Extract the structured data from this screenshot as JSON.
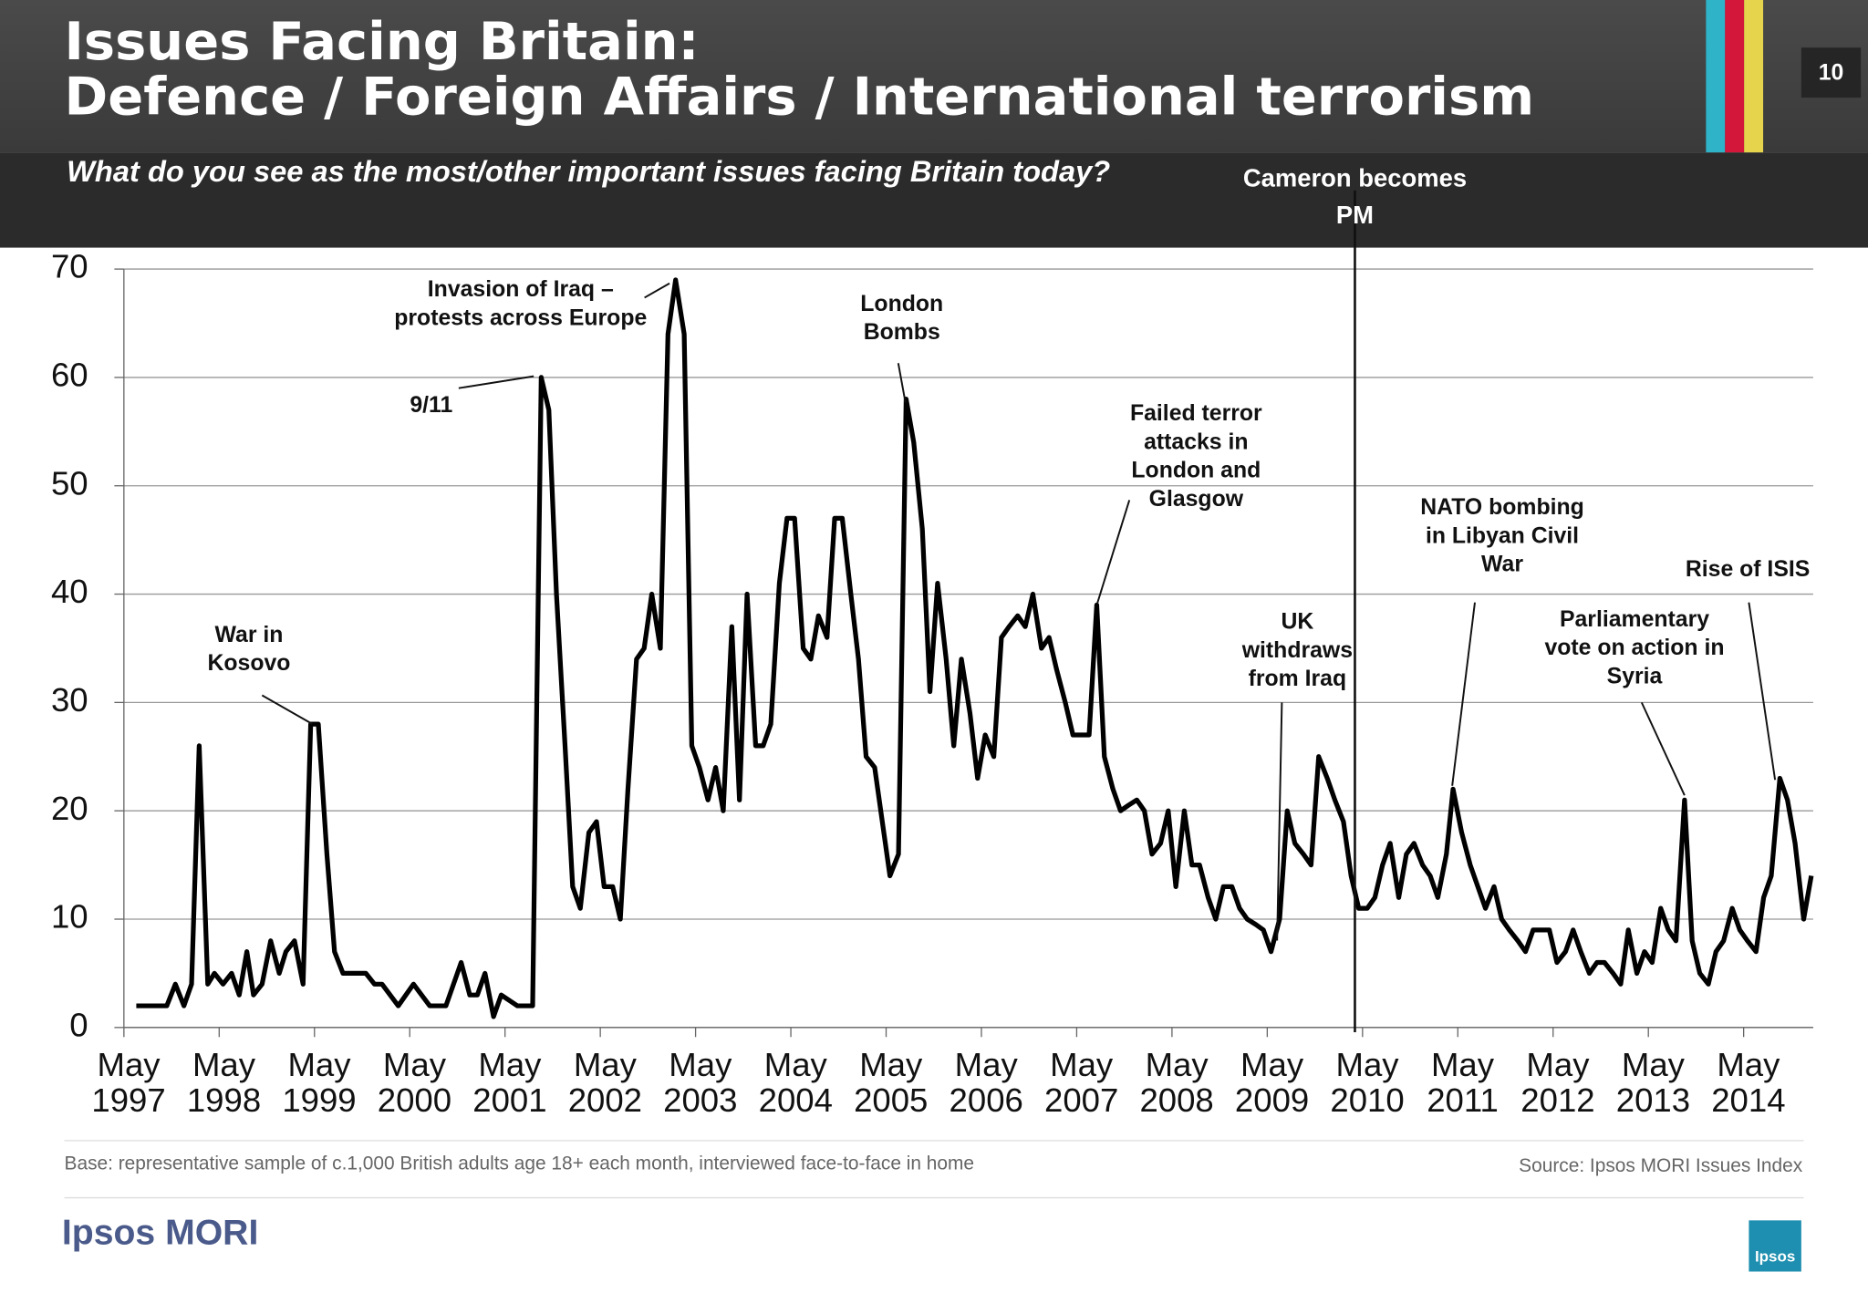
{
  "header": {
    "title_lines": [
      "Issues Facing Britain:",
      "Defence / Foreign Affairs / International terrorism"
    ],
    "subtitle": "What do you see as the most/other important issues facing Britain today?",
    "page_number": "10"
  },
  "chart_data": {
    "type": "line",
    "x": [
      1997.46,
      1997.56,
      1997.66,
      1997.78,
      1997.87,
      1997.96,
      1998.04,
      1998.12,
      1998.21,
      1998.28,
      1998.37,
      1998.46,
      1998.54,
      1998.62,
      1998.69,
      1998.78,
      1998.87,
      1998.96,
      1999.03,
      1999.12,
      1999.21,
      1999.29,
      1999.37,
      1999.46,
      1999.54,
      1999.63,
      1999.71,
      1999.79,
      1999.87,
      1999.96,
      2000.04,
      2000.21,
      2000.37,
      2000.54,
      2000.71,
      2000.87,
      2000.96,
      2001.04,
      2001.12,
      2001.21,
      2001.29,
      2001.46,
      2001.62,
      2001.71,
      2001.79,
      2001.87,
      2001.96,
      2002.04,
      2002.12,
      2002.21,
      2002.29,
      2002.37,
      2002.46,
      2002.54,
      2002.62,
      2002.71,
      2002.79,
      2002.87,
      2002.96,
      2003.04,
      2003.12,
      2003.21,
      2003.29,
      2003.37,
      2003.46,
      2003.54,
      2003.62,
      2003.71,
      2003.79,
      2003.87,
      2003.96,
      2004.04,
      2004.12,
      2004.21,
      2004.29,
      2004.37,
      2004.46,
      2004.54,
      2004.62,
      2004.71,
      2004.79,
      2004.87,
      2004.96,
      2005.04,
      2005.12,
      2005.21,
      2005.29,
      2005.37,
      2005.46,
      2005.54,
      2005.62,
      2005.71,
      2005.79,
      2005.87,
      2005.96,
      2006.04,
      2006.12,
      2006.21,
      2006.29,
      2006.37,
      2006.46,
      2006.54,
      2006.62,
      2006.71,
      2006.79,
      2006.87,
      2006.96,
      2007.04,
      2007.12,
      2007.21,
      2007.29,
      2007.37,
      2007.46,
      2007.54,
      2007.62,
      2007.71,
      2007.79,
      2007.87,
      2007.96,
      2008.04,
      2008.12,
      2008.21,
      2008.29,
      2008.37,
      2008.46,
      2008.54,
      2008.62,
      2008.71,
      2008.79,
      2008.87,
      2008.96,
      2009.04,
      2009.12,
      2009.21,
      2009.29,
      2009.37,
      2009.46,
      2009.54,
      2009.62,
      2009.71,
      2009.79,
      2009.87,
      2009.96,
      2010.04,
      2010.13,
      2010.21,
      2010.29,
      2010.38,
      2010.46,
      2010.54,
      2010.62,
      2010.71,
      2010.79,
      2010.87,
      2010.96,
      2011.04,
      2011.12,
      2011.21,
      2011.28,
      2011.37,
      2011.46,
      2011.54,
      2011.62,
      2011.71,
      2011.79,
      2011.87,
      2011.96,
      2012.04,
      2012.12,
      2012.21,
      2012.29,
      2012.37,
      2012.46,
      2012.54,
      2012.62,
      2012.71,
      2012.79,
      2012.87,
      2012.96,
      2013.04,
      2013.12,
      2013.21,
      2013.29,
      2013.37,
      2013.46,
      2013.54,
      2013.62,
      2013.71,
      2013.79,
      2013.87,
      2013.96,
      2014.04,
      2014.12,
      2014.21,
      2014.29,
      2014.37,
      2014.46,
      2014.54,
      2014.62,
      2014.71,
      2014.79,
      2014.87,
      2014.96,
      2015.04
    ],
    "series": [
      {
        "color": "#000000",
        "values": [
          2,
          2,
          2,
          2,
          4,
          2,
          4,
          26,
          4,
          5,
          4,
          5,
          3,
          7,
          3,
          4,
          8,
          5,
          7,
          8,
          4,
          28,
          28,
          16,
          7,
          5,
          5,
          5,
          5,
          4,
          4,
          2,
          4,
          2,
          2,
          6,
          3,
          3,
          5,
          1,
          3,
          2,
          2,
          60,
          57,
          40,
          26,
          13,
          11,
          18,
          19,
          13,
          13,
          10,
          22,
          34,
          35,
          40,
          35,
          64,
          69,
          64,
          26,
          24,
          21,
          24,
          20,
          37,
          21,
          40,
          26,
          26,
          28,
          41,
          47,
          47,
          35,
          34,
          38,
          36,
          47,
          47,
          40,
          34,
          25,
          24,
          19,
          14,
          16,
          58,
          54,
          46,
          31,
          41,
          34,
          26,
          34,
          29,
          23,
          27,
          25,
          36,
          37,
          38,
          37,
          40,
          35,
          36,
          33,
          30,
          27,
          27,
          27,
          39,
          25,
          22,
          20,
          20.5,
          21,
          20,
          16,
          17,
          20,
          13,
          20,
          15,
          15,
          12,
          10,
          13,
          13,
          11,
          10,
          9.5,
          9,
          7,
          10,
          20,
          17,
          16,
          15,
          25,
          23,
          21,
          19,
          14,
          11,
          11,
          12,
          15,
          17,
          12,
          16,
          17,
          15,
          14,
          12,
          16,
          22,
          18,
          15,
          13,
          11,
          13,
          10,
          9,
          8,
          7,
          9,
          9,
          9,
          6,
          7,
          9,
          7,
          5,
          6,
          6,
          5,
          4,
          9,
          5,
          7,
          6,
          11,
          9,
          8,
          21,
          8,
          5,
          4,
          7,
          8,
          11,
          9,
          8,
          7,
          12,
          14,
          23,
          21,
          17,
          10,
          14
        ]
      }
    ],
    "xlim": [
      1997.33,
      2015.06
    ],
    "xticks": [
      {
        "value": 1997.33,
        "label": "May 1997"
      },
      {
        "value": 1998.33,
        "label": "May 1998"
      },
      {
        "value": 1999.33,
        "label": "May 1999"
      },
      {
        "value": 2000.33,
        "label": "May 2000"
      },
      {
        "value": 2001.33,
        "label": "May 2001"
      },
      {
        "value": 2002.33,
        "label": "May 2002"
      },
      {
        "value": 2003.33,
        "label": "May 2003"
      },
      {
        "value": 2004.33,
        "label": "May 2004"
      },
      {
        "value": 2005.33,
        "label": "May 2005"
      },
      {
        "value": 2006.33,
        "label": "May 2006"
      },
      {
        "value": 2007.33,
        "label": "May 2007"
      },
      {
        "value": 2008.33,
        "label": "May 2008"
      },
      {
        "value": 2009.33,
        "label": "May 2009"
      },
      {
        "value": 2010.33,
        "label": "May 2010"
      },
      {
        "value": 2011.33,
        "label": "May 2011"
      },
      {
        "value": 2012.33,
        "label": "May 2012"
      },
      {
        "value": 2013.33,
        "label": "May 2013"
      },
      {
        "value": 2014.33,
        "label": "May 2014"
      }
    ],
    "ylim": [
      0,
      70
    ],
    "yticks": [
      0,
      10,
      20,
      30,
      40,
      50,
      60,
      70
    ],
    "grid": true,
    "vline": {
      "x": 2010.25,
      "lines": [
        "Cameron becomes",
        "PM"
      ]
    },
    "annotations": [
      {
        "lines": [
          "War in",
          "Kosovo"
        ]
      },
      {
        "lines": [
          "9/11"
        ]
      },
      {
        "lines": [
          "Invasion of Iraq –",
          "protests across Europe"
        ]
      },
      {
        "lines": [
          "London",
          "Bombs"
        ]
      },
      {
        "lines": [
          "Failed terror",
          "attacks in",
          "London and",
          "Glasgow"
        ]
      },
      {
        "lines": [
          "UK",
          "withdraws",
          "from Iraq"
        ]
      },
      {
        "lines": [
          "NATO bombing",
          "in Libyan Civil",
          "War"
        ]
      },
      {
        "lines": [
          "Parliamentary",
          "vote on action in",
          "Syria"
        ]
      },
      {
        "lines": [
          "Rise of ISIS"
        ]
      }
    ]
  },
  "footer": {
    "base": "Base: representative sample of c.1,000 British adults age 18+ each month, interviewed face-to-face in home",
    "source": "Source: Ipsos MORI Issues Index",
    "logo": "Ipsos MORI",
    "badge": "Ipsos"
  }
}
